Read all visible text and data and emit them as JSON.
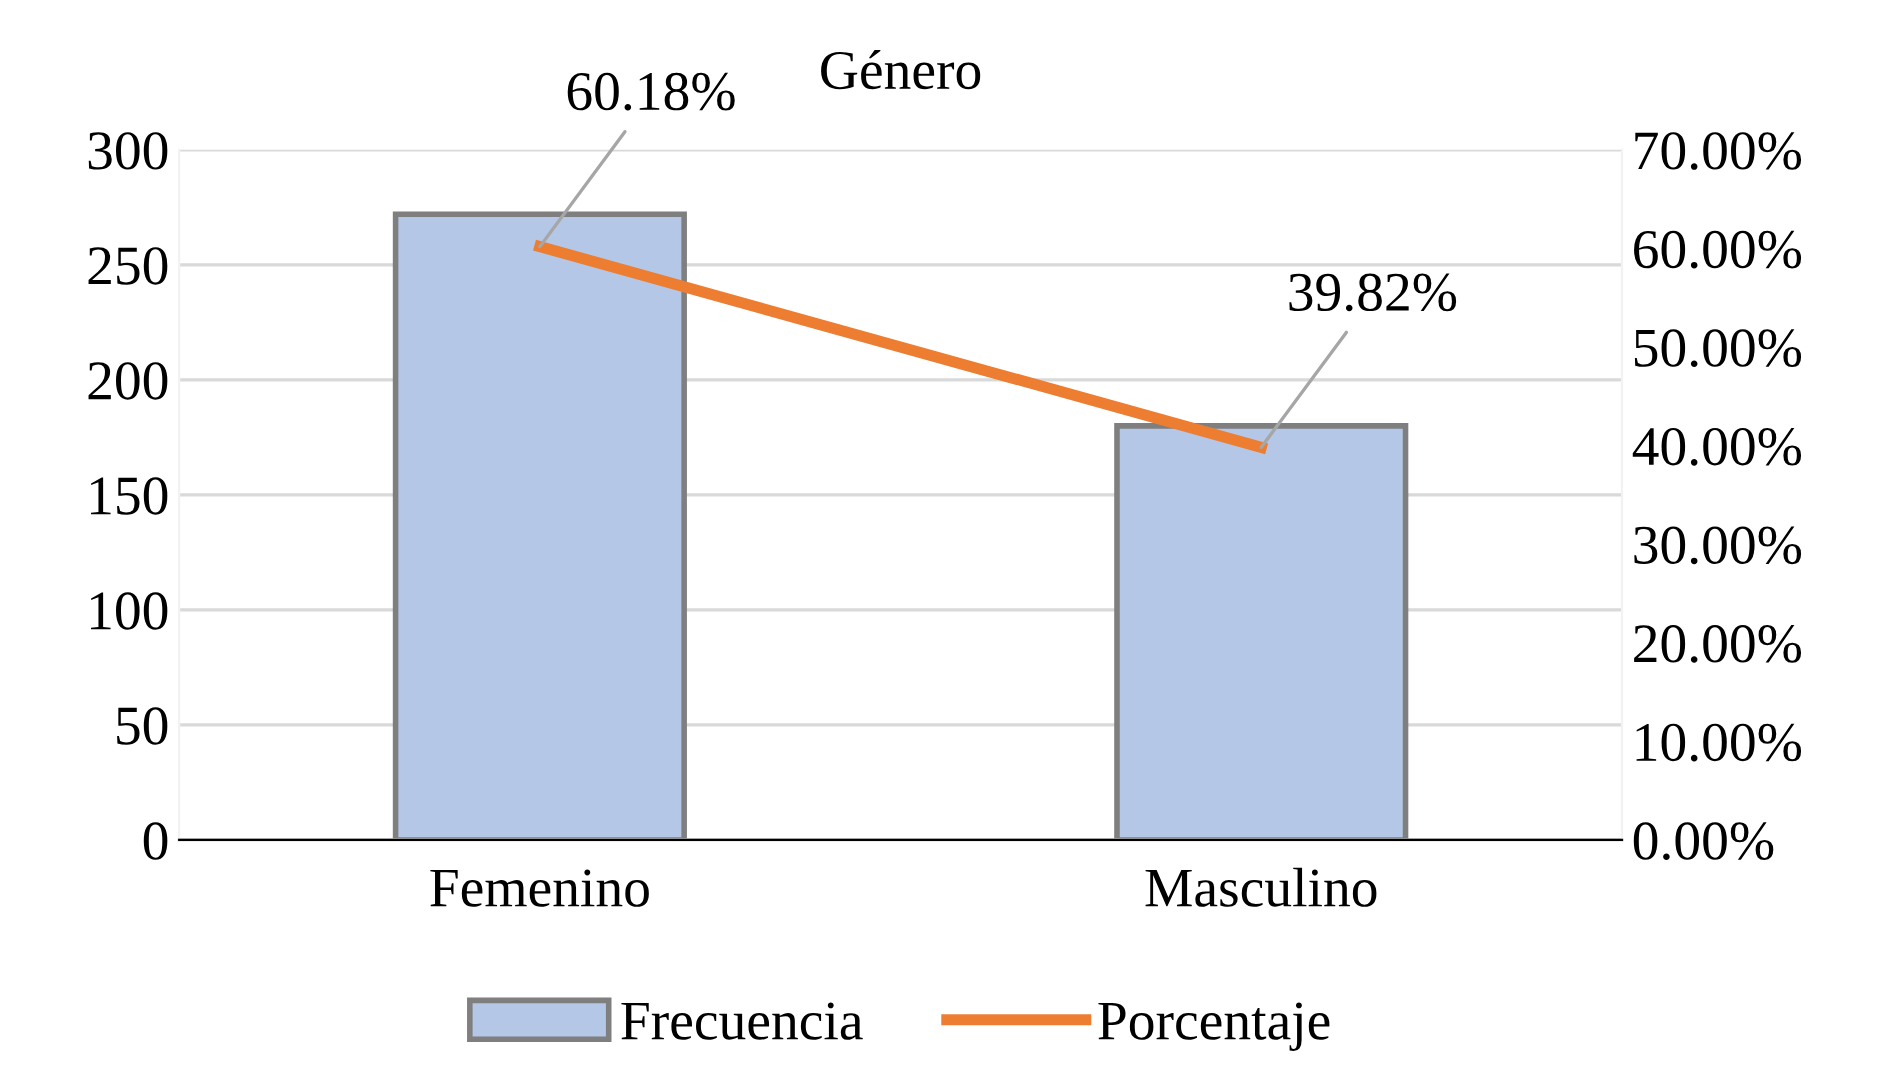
{
  "chart_data": {
    "type": "bar",
    "title": "Género",
    "categories": [
      "Femenino",
      "Masculino"
    ],
    "series": [
      {
        "name": "Frecuencia",
        "color": "#b4c7e7",
        "values": [
          272,
          180
        ]
      },
      {
        "name": "Porcentaje",
        "type": "line",
        "axis": "y2",
        "color": "#ed7d31",
        "values": [
          60.18,
          39.82
        ],
        "value_labels": [
          "60.18%",
          "39.82%"
        ],
        "marker": "none"
      }
    ],
    "ylim": [
      0,
      300
    ],
    "yticks": [
      0,
      50,
      100,
      150,
      200,
      250,
      300
    ],
    "y2lim": [
      0,
      70
    ],
    "y2ticks": [
      {
        "value": 0,
        "label": "0.00%"
      },
      {
        "value": 10,
        "label": "10.00%"
      },
      {
        "value": 20,
        "label": "20.00%"
      },
      {
        "value": 30,
        "label": "30.00%"
      },
      {
        "value": 40,
        "label": "40.00%"
      },
      {
        "value": 50,
        "label": "50.00%"
      },
      {
        "value": 60,
        "label": "60.00%"
      },
      {
        "value": 70,
        "label": "70.00%"
      }
    ],
    "grid": "y",
    "legend": "bottom"
  }
}
